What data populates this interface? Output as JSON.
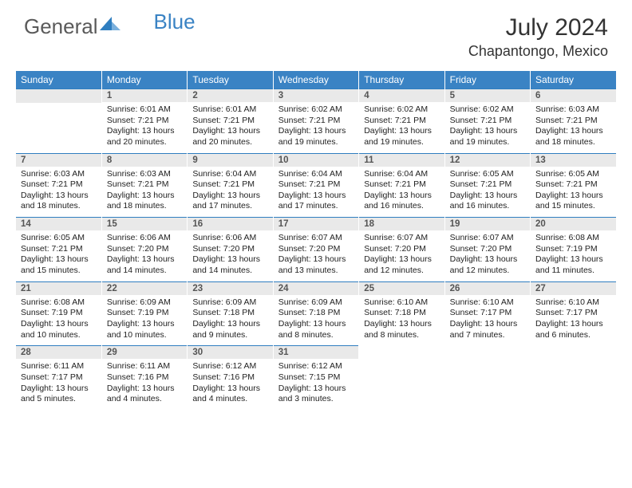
{
  "brand": {
    "general": "General",
    "blue": "Blue"
  },
  "title": "July 2024",
  "location": "Chapantongo, Mexico",
  "weekdays": [
    "Sunday",
    "Monday",
    "Tuesday",
    "Wednesday",
    "Thursday",
    "Friday",
    "Saturday"
  ],
  "colors": {
    "header_bg": "#3a83c4",
    "daynum_bg": "#e9e9e9",
    "border": "#2f7ec0",
    "logo_gray": "#5a5a5a",
    "logo_blue": "#3a83c4"
  },
  "weeks": [
    [
      null,
      {
        "n": "1",
        "sr": "Sunrise: 6:01 AM",
        "ss": "Sunset: 7:21 PM",
        "dl1": "Daylight: 13 hours",
        "dl2": "and 20 minutes."
      },
      {
        "n": "2",
        "sr": "Sunrise: 6:01 AM",
        "ss": "Sunset: 7:21 PM",
        "dl1": "Daylight: 13 hours",
        "dl2": "and 20 minutes."
      },
      {
        "n": "3",
        "sr": "Sunrise: 6:02 AM",
        "ss": "Sunset: 7:21 PM",
        "dl1": "Daylight: 13 hours",
        "dl2": "and 19 minutes."
      },
      {
        "n": "4",
        "sr": "Sunrise: 6:02 AM",
        "ss": "Sunset: 7:21 PM",
        "dl1": "Daylight: 13 hours",
        "dl2": "and 19 minutes."
      },
      {
        "n": "5",
        "sr": "Sunrise: 6:02 AM",
        "ss": "Sunset: 7:21 PM",
        "dl1": "Daylight: 13 hours",
        "dl2": "and 19 minutes."
      },
      {
        "n": "6",
        "sr": "Sunrise: 6:03 AM",
        "ss": "Sunset: 7:21 PM",
        "dl1": "Daylight: 13 hours",
        "dl2": "and 18 minutes."
      }
    ],
    [
      {
        "n": "7",
        "sr": "Sunrise: 6:03 AM",
        "ss": "Sunset: 7:21 PM",
        "dl1": "Daylight: 13 hours",
        "dl2": "and 18 minutes."
      },
      {
        "n": "8",
        "sr": "Sunrise: 6:03 AM",
        "ss": "Sunset: 7:21 PM",
        "dl1": "Daylight: 13 hours",
        "dl2": "and 18 minutes."
      },
      {
        "n": "9",
        "sr": "Sunrise: 6:04 AM",
        "ss": "Sunset: 7:21 PM",
        "dl1": "Daylight: 13 hours",
        "dl2": "and 17 minutes."
      },
      {
        "n": "10",
        "sr": "Sunrise: 6:04 AM",
        "ss": "Sunset: 7:21 PM",
        "dl1": "Daylight: 13 hours",
        "dl2": "and 17 minutes."
      },
      {
        "n": "11",
        "sr": "Sunrise: 6:04 AM",
        "ss": "Sunset: 7:21 PM",
        "dl1": "Daylight: 13 hours",
        "dl2": "and 16 minutes."
      },
      {
        "n": "12",
        "sr": "Sunrise: 6:05 AM",
        "ss": "Sunset: 7:21 PM",
        "dl1": "Daylight: 13 hours",
        "dl2": "and 16 minutes."
      },
      {
        "n": "13",
        "sr": "Sunrise: 6:05 AM",
        "ss": "Sunset: 7:21 PM",
        "dl1": "Daylight: 13 hours",
        "dl2": "and 15 minutes."
      }
    ],
    [
      {
        "n": "14",
        "sr": "Sunrise: 6:05 AM",
        "ss": "Sunset: 7:21 PM",
        "dl1": "Daylight: 13 hours",
        "dl2": "and 15 minutes."
      },
      {
        "n": "15",
        "sr": "Sunrise: 6:06 AM",
        "ss": "Sunset: 7:20 PM",
        "dl1": "Daylight: 13 hours",
        "dl2": "and 14 minutes."
      },
      {
        "n": "16",
        "sr": "Sunrise: 6:06 AM",
        "ss": "Sunset: 7:20 PM",
        "dl1": "Daylight: 13 hours",
        "dl2": "and 14 minutes."
      },
      {
        "n": "17",
        "sr": "Sunrise: 6:07 AM",
        "ss": "Sunset: 7:20 PM",
        "dl1": "Daylight: 13 hours",
        "dl2": "and 13 minutes."
      },
      {
        "n": "18",
        "sr": "Sunrise: 6:07 AM",
        "ss": "Sunset: 7:20 PM",
        "dl1": "Daylight: 13 hours",
        "dl2": "and 12 minutes."
      },
      {
        "n": "19",
        "sr": "Sunrise: 6:07 AM",
        "ss": "Sunset: 7:20 PM",
        "dl1": "Daylight: 13 hours",
        "dl2": "and 12 minutes."
      },
      {
        "n": "20",
        "sr": "Sunrise: 6:08 AM",
        "ss": "Sunset: 7:19 PM",
        "dl1": "Daylight: 13 hours",
        "dl2": "and 11 minutes."
      }
    ],
    [
      {
        "n": "21",
        "sr": "Sunrise: 6:08 AM",
        "ss": "Sunset: 7:19 PM",
        "dl1": "Daylight: 13 hours",
        "dl2": "and 10 minutes."
      },
      {
        "n": "22",
        "sr": "Sunrise: 6:09 AM",
        "ss": "Sunset: 7:19 PM",
        "dl1": "Daylight: 13 hours",
        "dl2": "and 10 minutes."
      },
      {
        "n": "23",
        "sr": "Sunrise: 6:09 AM",
        "ss": "Sunset: 7:18 PM",
        "dl1": "Daylight: 13 hours",
        "dl2": "and 9 minutes."
      },
      {
        "n": "24",
        "sr": "Sunrise: 6:09 AM",
        "ss": "Sunset: 7:18 PM",
        "dl1": "Daylight: 13 hours",
        "dl2": "and 8 minutes."
      },
      {
        "n": "25",
        "sr": "Sunrise: 6:10 AM",
        "ss": "Sunset: 7:18 PM",
        "dl1": "Daylight: 13 hours",
        "dl2": "and 8 minutes."
      },
      {
        "n": "26",
        "sr": "Sunrise: 6:10 AM",
        "ss": "Sunset: 7:17 PM",
        "dl1": "Daylight: 13 hours",
        "dl2": "and 7 minutes."
      },
      {
        "n": "27",
        "sr": "Sunrise: 6:10 AM",
        "ss": "Sunset: 7:17 PM",
        "dl1": "Daylight: 13 hours",
        "dl2": "and 6 minutes."
      }
    ],
    [
      {
        "n": "28",
        "sr": "Sunrise: 6:11 AM",
        "ss": "Sunset: 7:17 PM",
        "dl1": "Daylight: 13 hours",
        "dl2": "and 5 minutes."
      },
      {
        "n": "29",
        "sr": "Sunrise: 6:11 AM",
        "ss": "Sunset: 7:16 PM",
        "dl1": "Daylight: 13 hours",
        "dl2": "and 4 minutes."
      },
      {
        "n": "30",
        "sr": "Sunrise: 6:12 AM",
        "ss": "Sunset: 7:16 PM",
        "dl1": "Daylight: 13 hours",
        "dl2": "and 4 minutes."
      },
      {
        "n": "31",
        "sr": "Sunrise: 6:12 AM",
        "ss": "Sunset: 7:15 PM",
        "dl1": "Daylight: 13 hours",
        "dl2": "and 3 minutes."
      },
      null,
      null,
      null
    ]
  ]
}
